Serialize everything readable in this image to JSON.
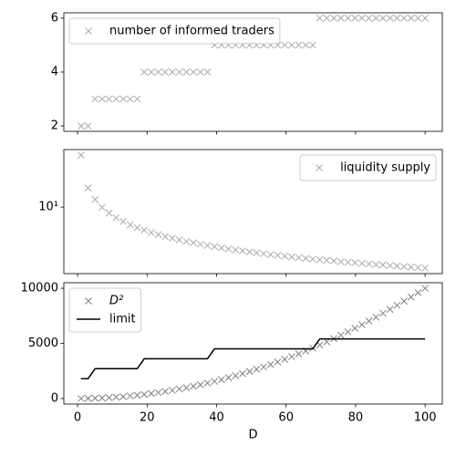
{
  "chart_data": [
    {
      "type": "scatter",
      "x": [
        1,
        3.02,
        5.04,
        7.06,
        9.08,
        11.1,
        13.12,
        15.14,
        17.16,
        19.18,
        21.2,
        23.22,
        25.24,
        27.27,
        29.29,
        31.31,
        33.33,
        35.35,
        37.37,
        39.39,
        41.41,
        43.43,
        45.45,
        47.47,
        49.49,
        51.51,
        53.53,
        55.55,
        57.57,
        59.59,
        61.61,
        63.63,
        65.65,
        67.67,
        69.69,
        71.71,
        73.73,
        75.76,
        77.78,
        79.8,
        81.82,
        83.84,
        85.86,
        87.88,
        89.9,
        91.92,
        93.94,
        95.96,
        97.98,
        100
      ],
      "series": [
        {
          "name": "number of informed traders",
          "color": "#aaaaaa",
          "style": "x",
          "values": [
            2,
            2,
            3,
            3,
            3,
            3,
            3,
            3,
            3,
            4,
            4,
            4,
            4,
            4,
            4,
            4,
            4,
            4,
            4,
            5,
            5,
            5,
            5,
            5,
            5,
            5,
            5,
            5,
            5,
            5,
            5,
            5,
            5,
            5,
            6,
            6,
            6,
            6,
            6,
            6,
            6,
            6,
            6,
            6,
            6,
            6,
            6,
            6,
            6,
            6
          ]
        }
      ],
      "xlim": [
        -3.95,
        104.95
      ],
      "xticks": [
        0,
        20,
        40,
        60,
        80,
        100
      ],
      "ylim": [
        1.8,
        6.2
      ],
      "yticks": [
        2,
        4,
        6
      ],
      "legend": "upper left"
    },
    {
      "type": "scatter",
      "yscale": "log",
      "x": [
        1,
        3.02,
        5.04,
        7.06,
        9.08,
        11.1,
        13.12,
        15.14,
        17.16,
        19.18,
        21.2,
        23.22,
        25.24,
        27.27,
        29.29,
        31.31,
        33.33,
        35.35,
        37.37,
        39.39,
        41.41,
        43.43,
        45.45,
        47.47,
        49.49,
        51.51,
        53.53,
        55.55,
        57.57,
        59.59,
        61.61,
        63.63,
        65.65,
        67.67,
        69.69,
        71.71,
        73.73,
        75.76,
        77.78,
        79.8,
        81.82,
        83.84,
        85.86,
        87.88,
        89.9,
        91.92,
        93.94,
        95.96,
        97.98,
        100
      ],
      "series": [
        {
          "name": "liquidity supply",
          "color": "#aaaaaa",
          "style": "x",
          "values": [
            55,
            18.8,
            12.8,
            9.93,
            8.22,
            7.07,
            6.24,
            5.6,
            5.1,
            4.69,
            4.35,
            4.06,
            3.82,
            3.6,
            3.42,
            3.25,
            3.1,
            2.97,
            2.84,
            2.74,
            2.63,
            2.54,
            2.46,
            2.38,
            2.3,
            2.24,
            2.17,
            2.11,
            2.06,
            2.0,
            1.95,
            1.91,
            1.86,
            1.82,
            1.78,
            1.75,
            1.71,
            1.67,
            1.64,
            1.61,
            1.58,
            1.55,
            1.52,
            1.5,
            1.47,
            1.45,
            1.42,
            1.4,
            1.38,
            1.36
          ]
        }
      ],
      "xlim": [
        -3.95,
        104.95
      ],
      "xticks": [
        0,
        20,
        40,
        60,
        80,
        100
      ],
      "ylim": [
        1.13,
        66
      ],
      "yticks": [
        {
          "value": 10,
          "label": "10¹"
        }
      ],
      "legend": "upper right"
    },
    {
      "type": "line",
      "xlabel": "D",
      "x": [
        1,
        3.02,
        5.04,
        7.06,
        9.08,
        11.1,
        13.12,
        15.14,
        17.16,
        19.18,
        21.2,
        23.22,
        25.24,
        27.27,
        29.29,
        31.31,
        33.33,
        35.35,
        37.37,
        39.39,
        41.41,
        43.43,
        45.45,
        47.47,
        49.49,
        51.51,
        53.53,
        55.55,
        57.57,
        59.59,
        61.61,
        63.63,
        65.65,
        67.67,
        69.69,
        71.71,
        73.73,
        75.76,
        77.78,
        79.8,
        81.82,
        83.84,
        85.86,
        87.88,
        89.9,
        91.92,
        93.94,
        95.96,
        97.98,
        100
      ],
      "series": [
        {
          "name": "D²",
          "color": "#808080",
          "style": "x",
          "values": [
            1,
            9,
            25,
            50,
            82,
            123,
            172,
            229,
            294,
            368,
            449,
            539,
            637,
            744,
            858,
            980,
            1111,
            1250,
            1397,
            1552,
            1715,
            1886,
            2066,
            2253,
            2449,
            2653,
            2865,
            3086,
            3314,
            3551,
            3796,
            4049,
            4310,
            4579,
            4857,
            5142,
            5436,
            5740,
            6050,
            6368,
            6695,
            7029,
            7372,
            7723,
            8082,
            8449,
            8825,
            9208,
            9600,
            10000
          ]
        },
        {
          "name": "limit",
          "color": "#000000",
          "style": "line",
          "values": [
            1800,
            1800,
            2700,
            2700,
            2700,
            2700,
            2700,
            2700,
            2700,
            3600,
            3600,
            3600,
            3600,
            3600,
            3600,
            3600,
            3600,
            3600,
            3600,
            4500,
            4500,
            4500,
            4500,
            4500,
            4500,
            4500,
            4500,
            4500,
            4500,
            4500,
            4500,
            4500,
            4500,
            4500,
            5400,
            5400,
            5400,
            5400,
            5400,
            5400,
            5400,
            5400,
            5400,
            5400,
            5400,
            5400,
            5400,
            5400,
            5400,
            5400
          ]
        }
      ],
      "xlim": [
        -3.95,
        104.95
      ],
      "xticks": [
        0,
        20,
        40,
        60,
        80,
        100
      ],
      "ylim": [
        -500,
        10500
      ],
      "yticks": [
        0,
        5000,
        10000
      ],
      "legend": "upper left"
    }
  ]
}
